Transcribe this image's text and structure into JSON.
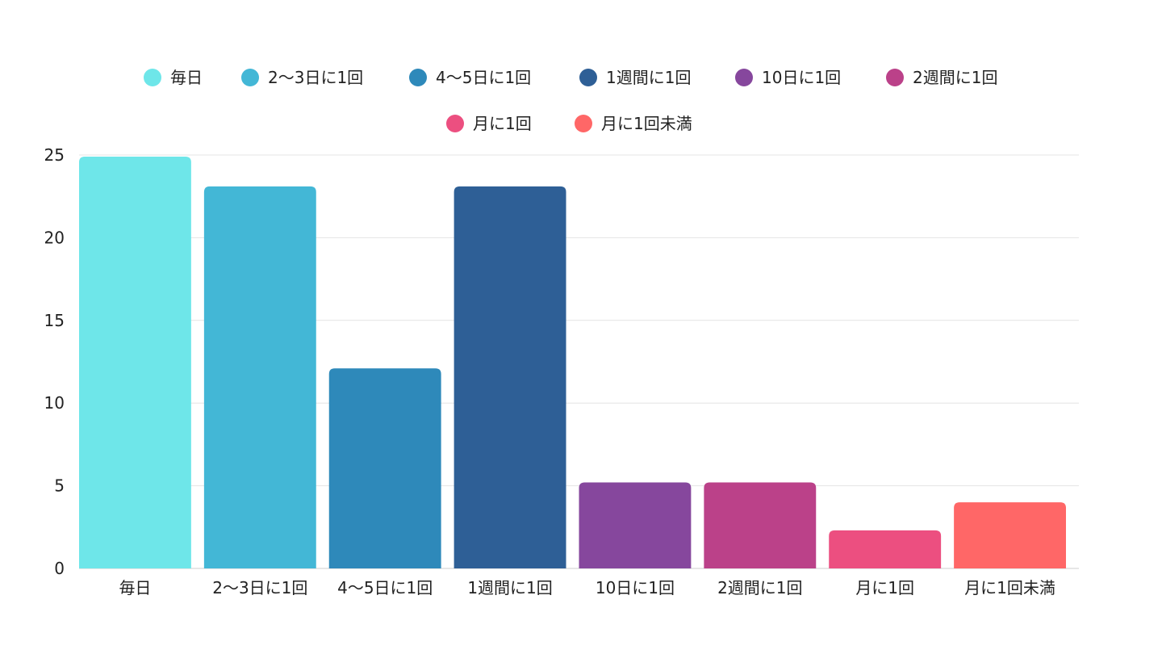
{
  "chart_data": {
    "type": "bar",
    "title": "",
    "xlabel": "",
    "ylabel": "",
    "categories": [
      "毎日",
      "2〜3日に1回",
      "4〜5日に1回",
      "1週間に1回",
      "10日に1回",
      "2週間に1回",
      "月に1回",
      "月に1回未満"
    ],
    "values": [
      24.9,
      23.1,
      12.1,
      23.1,
      5.2,
      5.2,
      2.3,
      4.0
    ],
    "colors": [
      "#6ee6e9",
      "#43b7d6",
      "#2e89ba",
      "#2e5f96",
      "#86479d",
      "#bb4189",
      "#ec4f80",
      "#ff6767"
    ],
    "legend": {
      "placement": "top",
      "entries": [
        "毎日",
        "2〜3日に1回",
        "4〜5日に1回",
        "1週間に1回",
        "10日に1回",
        "2週間に1回",
        "月に1回",
        "月に1回未満"
      ]
    },
    "ylim": [
      0,
      25
    ],
    "yticks": [
      0,
      5,
      10,
      15,
      20,
      25
    ],
    "grid": true
  }
}
